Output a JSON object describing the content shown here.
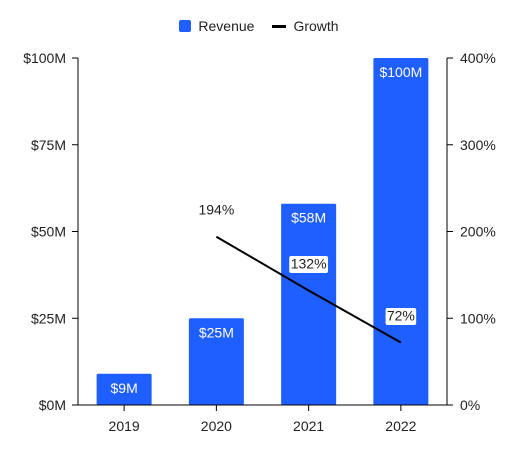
{
  "colors": {
    "revenue": "#1f5eff",
    "growth": "#000000",
    "axis": "#000000",
    "label_text": "#ffffff"
  },
  "legend": [
    {
      "label": "Revenue",
      "marker": "square"
    },
    {
      "label": "Growth",
      "marker": "line"
    }
  ],
  "chart_data": {
    "type": "bar",
    "categories": [
      "2019",
      "2020",
      "2021",
      "2022"
    ],
    "series": [
      {
        "name": "Revenue",
        "type": "bar",
        "axis": "left",
        "values": [
          9,
          25,
          58,
          100
        ],
        "labels": [
          "$9M",
          "$25M",
          "$58M",
          "$100M"
        ]
      },
      {
        "name": "Growth",
        "type": "line",
        "axis": "right",
        "values": [
          null,
          194,
          132,
          72
        ],
        "labels": [
          "",
          "194%",
          "132%",
          "72%"
        ]
      }
    ],
    "y_left": {
      "ylim": [
        0,
        100
      ],
      "ticks": [
        0,
        25,
        50,
        75,
        100
      ],
      "tick_labels": [
        "$0M",
        "$25M",
        "$50M",
        "$75M",
        "$100M"
      ]
    },
    "y_right": {
      "ylim": [
        0,
        400
      ],
      "ticks": [
        0,
        100,
        200,
        300,
        400
      ],
      "tick_labels": [
        "0%",
        "100%",
        "200%",
        "300%",
        "400%"
      ]
    },
    "grid": false,
    "legend_position": "top-center"
  }
}
